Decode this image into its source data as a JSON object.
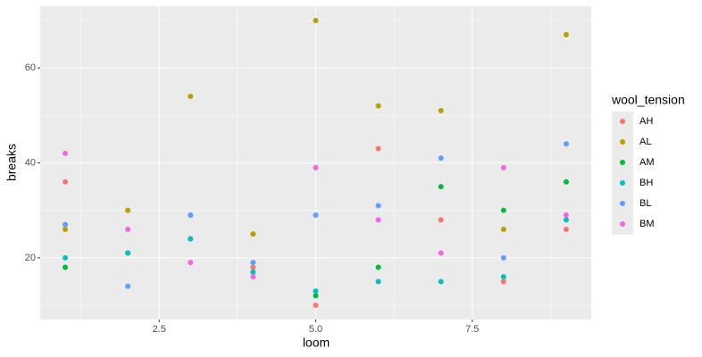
{
  "chart_data": {
    "type": "scatter",
    "x_label": "loom",
    "y_label": "breaks",
    "legend_title": "wool_tension",
    "legend_position": "right",
    "x": [
      1,
      2,
      3,
      4,
      5,
      6,
      7,
      8,
      9
    ],
    "series": [
      {
        "name": "AH",
        "color": "#F8766D",
        "values": [
          36,
          21,
          24,
          18,
          10,
          43,
          28,
          15,
          26
        ]
      },
      {
        "name": "AL",
        "color": "#B79F00",
        "values": [
          26,
          30,
          54,
          25,
          70,
          52,
          51,
          26,
          67
        ]
      },
      {
        "name": "AM",
        "color": "#00BA38",
        "values": [
          18,
          21,
          29,
          17,
          12,
          18,
          35,
          30,
          36
        ]
      },
      {
        "name": "BH",
        "color": "#00BFC4",
        "values": [
          20,
          21,
          24,
          17,
          13,
          15,
          15,
          16,
          28
        ]
      },
      {
        "name": "BL",
        "color": "#619CFF",
        "values": [
          27,
          14,
          29,
          19,
          29,
          31,
          41,
          20,
          44
        ]
      },
      {
        "name": "BM",
        "color": "#F564E3",
        "values": [
          42,
          26,
          19,
          16,
          39,
          28,
          21,
          39,
          29
        ]
      }
    ],
    "xlim": [
      0.6,
      9.4
    ],
    "ylim": [
      7,
      73
    ],
    "xticks": [
      2.5,
      5.0,
      7.5
    ],
    "yticks": [
      20,
      40,
      60
    ],
    "x_minor_grid": [
      1.25,
      3.75,
      6.25,
      8.75
    ],
    "y_minor_grid": [
      10,
      30,
      50,
      70
    ],
    "grid": true
  }
}
